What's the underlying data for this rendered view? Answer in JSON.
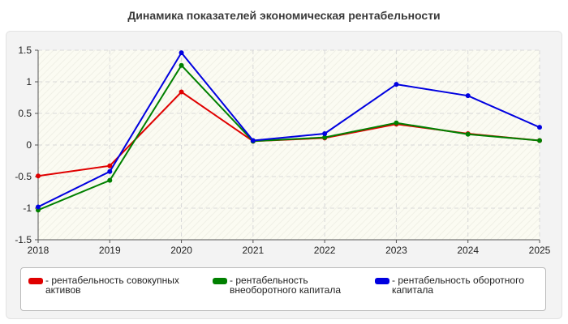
{
  "title": "Динамика показателей экономическая рентабельности",
  "chart_data": {
    "type": "line",
    "x": [
      "2018",
      "2019",
      "2020",
      "2021",
      "2022",
      "2023",
      "2024",
      "2025"
    ],
    "ylim": [
      -1.5,
      1.5
    ],
    "yticks": [
      "-1.5",
      "-1",
      "-0.5",
      "0",
      "0.5",
      "1",
      "1.5"
    ],
    "ytick_values": [
      -1.5,
      -1,
      -0.5,
      0,
      0.5,
      1,
      1.5
    ],
    "grid": true,
    "legend_position": "bottom",
    "series": [
      {
        "name": "рентабельность совокупных активов",
        "color": "#e00000",
        "values": [
          -0.49,
          -0.33,
          0.84,
          0.06,
          0.11,
          0.33,
          0.18,
          0.07
        ]
      },
      {
        "name": "рентабельность внеоборотного капитала",
        "color": "#008000",
        "values": [
          -1.03,
          -0.56,
          1.26,
          0.06,
          0.12,
          0.35,
          0.17,
          0.07
        ]
      },
      {
        "name": "рентабельность оборотного капитала",
        "color": "#0000e0",
        "values": [
          -0.98,
          -0.42,
          1.46,
          0.07,
          0.18,
          0.96,
          0.78,
          0.28
        ]
      }
    ]
  }
}
